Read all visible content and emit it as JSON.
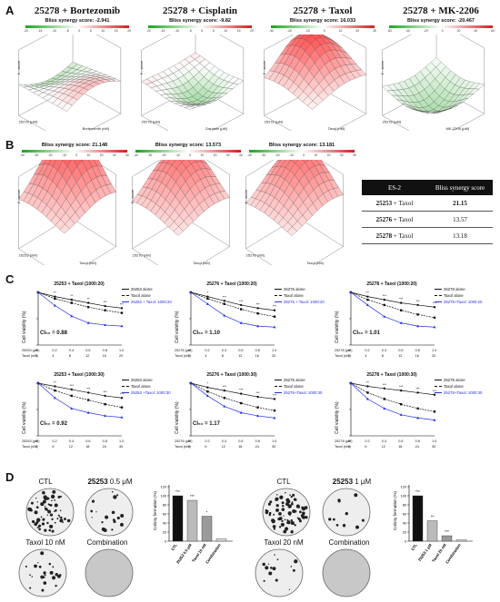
{
  "panel_letters": {
    "a": "A",
    "b": "B",
    "c": "C",
    "d": "D"
  },
  "panelA": [
    {
      "title": "25278 + Bortezomib",
      "score_text": "Bliss synergy score: -2.941",
      "ticks": [
        "-20",
        "-15",
        "-10",
        "-5",
        "0",
        "5",
        "10",
        "15",
        "20"
      ],
      "x_axis": "Bortezomib (nM)",
      "y_axis": "25278 (μM)"
    },
    {
      "title": "25278 + Cisplatin",
      "score_text": "Bliss synergy score: -9.82",
      "ticks": [
        "-20",
        "-15",
        "-10",
        "-5",
        "0",
        "5",
        "10",
        "15",
        "20"
      ],
      "x_axis": "Cisplatin (μM)",
      "y_axis": "25278 (μM)"
    },
    {
      "title": "25278 + Taxol",
      "score_text": "Bliss synergy score: 16.033",
      "ticks": [
        "-30",
        "-20",
        "-10",
        "0",
        "10",
        "20",
        "30"
      ],
      "x_axis": "Taxol (nM)",
      "y_axis": "25278 (μM)"
    },
    {
      "title": "25278 + MK-2206",
      "score_text": "Bliss synergy score: -20.467",
      "ticks": [
        "-60",
        "-40",
        "-20",
        "0",
        "20",
        "40",
        "60"
      ],
      "x_axis": "MK-2206 (μM)",
      "y_axis": "25278 (μM)"
    }
  ],
  "panelB": [
    {
      "score_text": "Bliss synergy score: 21.148",
      "ticks": [
        "-40",
        "-30",
        "-20",
        "-10",
        "0",
        "10",
        "20",
        "30",
        "40"
      ],
      "x_axis": "Taxol (nM)",
      "y_axis": "25253 (nM)"
    },
    {
      "score_text": "Bliss synergy score: 13.573",
      "ticks": [
        "-40",
        "-30",
        "-20",
        "-10",
        "0",
        "10",
        "20",
        "30",
        "40"
      ],
      "x_axis": "Taxol (nM)",
      "y_axis": "25276 (nM)"
    },
    {
      "score_text": "Bliss synergy score: 13.181",
      "ticks": [
        "-40",
        "-30",
        "-20",
        "-10",
        "0",
        "10",
        "20",
        "30",
        "40"
      ],
      "x_axis": "Taxol (nM)",
      "y_axis": "25278 (nM)"
    }
  ],
  "table": {
    "headers": [
      "ES-2",
      "Bliss synergy score"
    ],
    "rows": [
      {
        "combo_bold": "25253",
        "combo_rest": " + Taxol",
        "score": "21.15"
      },
      {
        "combo_bold": "25276",
        "combo_rest": " + Taxol",
        "score": "13.57"
      },
      {
        "combo_bold": "25278",
        "combo_rest": " + Taxol",
        "score": "13.18"
      }
    ]
  },
  "panelC": [
    {
      "title": "25253 + Taxol (1000:20)",
      "legend": [
        "25253 alone",
        "Taxol alone",
        "25253 + Taxol: 1000:20"
      ],
      "ic50": "CI₅₀ = 0.88",
      "row1_label": "25253 (μM)",
      "row1": [
        "0",
        "0.2",
        "0.4",
        "0.6",
        "0.8",
        "1.0"
      ],
      "row2_label": "Taxol (nM)",
      "row2": [
        "0",
        "4",
        "8",
        "12",
        "16",
        "20"
      ]
    },
    {
      "title": "25276 + Taxol (1000:20)",
      "legend": [
        "25276 alone",
        "Taxol alone",
        "25276 + Taxol: 1000:20"
      ],
      "ic50": "CI₅₀ = 1.10",
      "row1_label": "25276 (μM)",
      "row1": [
        "0",
        "0.2",
        "0.4",
        "0.6",
        "0.8",
        "1.0"
      ],
      "row2_label": "Taxol (nM)",
      "row2": [
        "0",
        "4",
        "8",
        "12",
        "16",
        "20"
      ]
    },
    {
      "title": "25278 + Taxol (1000:20)",
      "legend": [
        "25278 alone",
        "Taxol alone",
        "25278+Taxol: 1000:20"
      ],
      "ic50": "CI₅₀ = 1.01",
      "row1_label": "25278 (μM)",
      "row1": [
        "0",
        "0.2",
        "0.4",
        "0.6",
        "0.8",
        "1.0"
      ],
      "row2_label": "Taxol (nM)",
      "row2": [
        "0",
        "4",
        "8",
        "12",
        "16",
        "20"
      ]
    },
    {
      "title": "25253 + Taxol (1000:30)",
      "legend": [
        "25253 alone",
        "Taxol alone",
        "25253 +Taxol: 1000:30"
      ],
      "ic50": "CI₅₀ = 0.92",
      "row1_label": "25253 (μM)",
      "row1": [
        "0",
        "0.2",
        "0.4",
        "0.6",
        "0.8",
        "1.0"
      ],
      "row2_label": "Taxol (nM)",
      "row2": [
        "0",
        "6",
        "12",
        "18",
        "24",
        "30"
      ]
    },
    {
      "title": "25276 + Taxol (1000:30)",
      "legend": [
        "25276 alone",
        "Taxol alone",
        "25276+Taxol: 1000:30"
      ],
      "ic50": "CI₅₀ = 1.17",
      "row1_label": "25276 (μM)",
      "row1": [
        "0",
        "0.2",
        "0.4",
        "0.6",
        "0.8",
        "1.0"
      ],
      "row2_label": "Taxol (nM)",
      "row2": [
        "0",
        "6",
        "12",
        "18",
        "24",
        "30"
      ]
    },
    {
      "title": "25278 + Taxol (1000:30)",
      "legend": [
        "25278 alone",
        "Taxol alone",
        "25278+Taxol: 1000:30"
      ],
      "ic50": "",
      "row1_label": "25278 (μM)",
      "row1": [
        "0",
        "0.2",
        "0.4",
        "0.6",
        "0.8",
        "1.0"
      ],
      "row2_label": "Taxol (nM)",
      "row2": [
        "0",
        "6",
        "12",
        "18",
        "24",
        "30"
      ]
    }
  ],
  "panelD": {
    "left": {
      "ctl": "CTL",
      "drug_bold": "25253",
      "drug_rest": " 0.5 μM",
      "taxol": "Taxol 10 nM",
      "combination": "Combination"
    },
    "right": {
      "ctl": "CTL",
      "drug_bold": "25253",
      "drug_rest": " 1 μM",
      "taxol": "Taxol 20 nM",
      "combination": "Combination"
    }
  },
  "colors": {
    "red": "#d42020",
    "green": "#1aa51a",
    "blue": "#2430e8",
    "black": "#111111",
    "bar_dark": "#111111",
    "bar_gray": "#9a9a9a"
  },
  "chart_data": [
    {
      "type": "line",
      "title": "25253 + Taxol (1000:20)",
      "ylabel": "Cell viability (%)",
      "ylim": [
        0,
        100
      ],
      "x": [
        0,
        0.2,
        0.4,
        0.6,
        0.8,
        1.0
      ],
      "series": [
        {
          "name": "25253 alone",
          "values": [
            100,
            92,
            86,
            80,
            74,
            70
          ]
        },
        {
          "name": "Taxol alone",
          "values": [
            100,
            88,
            80,
            72,
            66,
            61
          ]
        },
        {
          "name": "25253 + Taxol: 1000:20",
          "values": [
            100,
            75,
            55,
            42,
            38,
            36
          ]
        }
      ]
    },
    {
      "type": "line",
      "title": "25276 + Taxol (1000:20)",
      "ylabel": "Cell viability (%)",
      "ylim": [
        0,
        100
      ],
      "x": [
        0,
        0.2,
        0.4,
        0.6,
        0.8,
        1.0
      ],
      "series": [
        {
          "name": "25276 alone",
          "values": [
            100,
            92,
            84,
            76,
            70,
            66
          ]
        },
        {
          "name": "Taxol alone",
          "values": [
            100,
            88,
            78,
            68,
            60,
            54
          ]
        },
        {
          "name": "25276 + Taxol: 1000:20",
          "values": [
            100,
            78,
            56,
            42,
            36,
            34
          ]
        }
      ]
    },
    {
      "type": "line",
      "title": "25278 + Taxol (1000:20)",
      "ylabel": "Cell viability (%)",
      "ylim": [
        0,
        100
      ],
      "x": [
        0,
        0.2,
        0.4,
        0.6,
        0.8,
        1.0
      ],
      "series": [
        {
          "name": "25278 alone",
          "values": [
            100,
            92,
            86,
            80,
            76,
            72
          ]
        },
        {
          "name": "Taxol alone",
          "values": [
            100,
            86,
            76,
            66,
            58,
            52
          ]
        },
        {
          "name": "25278+Taxol: 1000:20",
          "values": [
            100,
            76,
            54,
            42,
            36,
            34
          ]
        }
      ]
    },
    {
      "type": "line",
      "title": "25253 + Taxol (1000:30)",
      "ylabel": "Cell viability (%)",
      "ylim": [
        0,
        100
      ],
      "x": [
        0,
        0.2,
        0.4,
        0.6,
        0.8,
        1.0
      ],
      "series": [
        {
          "name": "25253 alone",
          "values": [
            100,
            94,
            88,
            82,
            76,
            72
          ]
        },
        {
          "name": "Taxol alone",
          "values": [
            100,
            86,
            76,
            68,
            60,
            54
          ]
        },
        {
          "name": "25253 +Taxol: 1000:30",
          "values": [
            100,
            72,
            52,
            44,
            38,
            35
          ]
        }
      ]
    },
    {
      "type": "line",
      "title": "25276 + Taxol (1000:30)",
      "ylabel": "Cell viability (%)",
      "ylim": [
        0,
        100
      ],
      "x": [
        0,
        0.2,
        0.4,
        0.6,
        0.8,
        1.0
      ],
      "series": [
        {
          "name": "25276 alone",
          "values": [
            100,
            92,
            86,
            80,
            74,
            70
          ]
        },
        {
          "name": "Taxol alone",
          "values": [
            100,
            84,
            72,
            62,
            54,
            48
          ]
        },
        {
          "name": "25276+Taxol: 1000:30",
          "values": [
            100,
            76,
            56,
            44,
            38,
            34
          ]
        }
      ]
    },
    {
      "type": "line",
      "title": "25278 + Taxol (1000:30)",
      "ylabel": "Cell viability (%)",
      "ylim": [
        0,
        100
      ],
      "x": [
        0,
        0.2,
        0.4,
        0.6,
        0.8,
        1.0
      ],
      "series": [
        {
          "name": "25278 alone",
          "values": [
            100,
            94,
            90,
            86,
            82,
            78
          ]
        },
        {
          "name": "Taxol alone",
          "values": [
            100,
            82,
            70,
            60,
            52,
            46
          ]
        },
        {
          "name": "25278+Taxol: 1000:30",
          "values": [
            100,
            70,
            52,
            40,
            34,
            30
          ]
        }
      ]
    },
    {
      "type": "bar",
      "ylabel": "Colony formation (%)",
      "ylim": [
        0,
        120
      ],
      "categories": [
        "CTL",
        "25253 0.5 μM",
        "Taxol 10 nM",
        "Combination"
      ],
      "values": [
        100,
        90,
        55,
        5
      ],
      "annotations": [
        "***",
        "***",
        "*",
        ""
      ]
    },
    {
      "type": "bar",
      "ylabel": "Colony formation (%)",
      "ylim": [
        0,
        120
      ],
      "categories": [
        "CTL",
        "25253 1 μM",
        "Taxol 20 nM",
        "Combination"
      ],
      "values": [
        100,
        45,
        12,
        3
      ],
      "annotations": [
        "***",
        "**",
        "***",
        ""
      ]
    }
  ]
}
